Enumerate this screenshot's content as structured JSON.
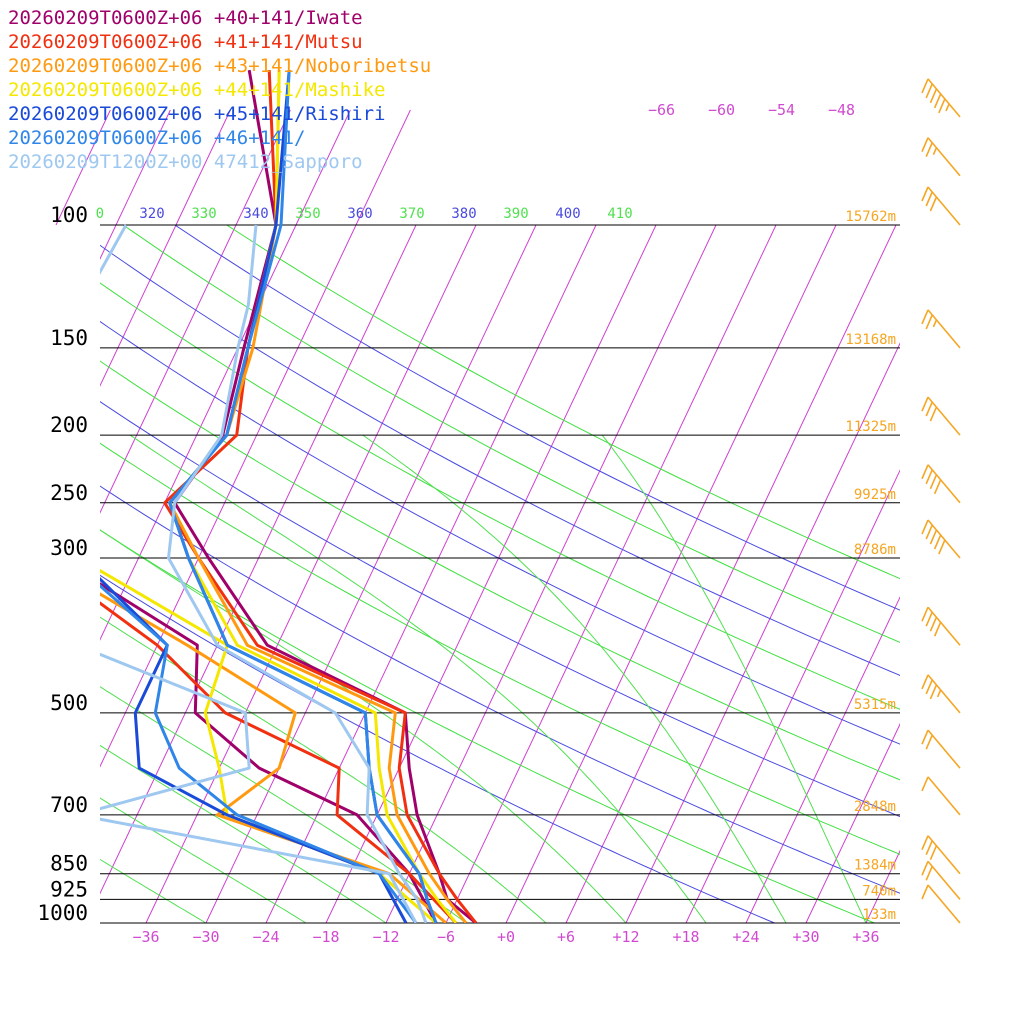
{
  "legend": [
    {
      "label": "20260209T0600Z+06 +40+141/Iwate",
      "color": "#a0006a"
    },
    {
      "label": "20260209T0600Z+06 +41+141/Mutsu",
      "color": "#f03010"
    },
    {
      "label": "20260209T0600Z+06 +43+141/Noboribetsu",
      "color": "#ff9a10"
    },
    {
      "label": "20260209T0600Z+06 +44+141/Mashike",
      "color": "#f4e800"
    },
    {
      "label": "20260209T0600Z+06 +45+141/Rishiri",
      "color": "#1a4ad8"
    },
    {
      "label": "20260209T0600Z+06 +46+141/",
      "color": "#2f86e8"
    },
    {
      "label": "20260209T1200Z+00 47412_Sapporo",
      "color": "#9ec8f0"
    }
  ],
  "chart_data": {
    "type": "line",
    "subtype": "skew-T log-p diagram",
    "pressure_levels": [
      100,
      150,
      200,
      250,
      300,
      500,
      700,
      850,
      925,
      1000
    ],
    "pressure_labels": [
      "100",
      "150",
      "200",
      "250",
      "300",
      "500",
      "700",
      "850",
      "925",
      "1000"
    ],
    "heights": [
      "15762m",
      "13168m",
      "11325m",
      "9925m",
      "8786m",
      "5315m",
      "2848m",
      "1384m",
      "740m",
      "133m"
    ],
    "temperature_ticks": [
      -36,
      -30,
      -24,
      -18,
      -12,
      -6,
      0,
      6,
      12,
      18,
      24,
      30,
      36
    ],
    "temperature_tick_labels": [
      "−36",
      "−30",
      "−24",
      "−18",
      "−12",
      "−6",
      "+0",
      "+6",
      "+12",
      "+18",
      "+24",
      "+30",
      "+36"
    ],
    "upper_temperature_labels": [
      "−66",
      "−60",
      "−54",
      "−48"
    ],
    "theta_labels": [
      "0",
      "320",
      "330",
      "340",
      "350",
      "360",
      "370",
      "380",
      "390",
      "400",
      "410"
    ],
    "xlim": [
      -40,
      40
    ],
    "ylim": [
      1000,
      100
    ],
    "log_pressure": true,
    "grid": true,
    "legend_position": "top-left",
    "series": [
      {
        "name": "20260209T0600Z+06 +40+141/Iwate",
        "color": "#a0006a",
        "temperature": [
          [
            60,
            -66
          ],
          [
            100,
            -56
          ],
          [
            150,
            -53.4
          ],
          [
            200,
            -51.4
          ],
          [
            250,
            -53
          ],
          [
            300,
            -47
          ],
          [
            400,
            -37
          ],
          [
            500,
            -20
          ],
          [
            600,
            -17
          ],
          [
            700,
            -14
          ],
          [
            850,
            -9
          ],
          [
            925,
            -7
          ],
          [
            1000,
            -3
          ]
        ],
        "dewpoint": [
          [
            300,
            -62
          ],
          [
            400,
            -44
          ],
          [
            500,
            -41
          ],
          [
            600,
            -32
          ],
          [
            700,
            -20
          ],
          [
            850,
            -12
          ],
          [
            1000,
            -7
          ]
        ]
      },
      {
        "name": "20260209T0600Z+06 +41+141/Mutsu",
        "color": "#f03010",
        "temperature": [
          [
            60,
            -64
          ],
          [
            100,
            -56
          ],
          [
            150,
            -53
          ],
          [
            200,
            -50
          ],
          [
            250,
            -54
          ],
          [
            300,
            -48
          ],
          [
            400,
            -38
          ],
          [
            500,
            -20
          ],
          [
            600,
            -18
          ],
          [
            700,
            -15
          ],
          [
            850,
            -9
          ],
          [
            925,
            -6
          ],
          [
            1000,
            -3
          ]
        ],
        "dewpoint": [
          [
            300,
            -64
          ],
          [
            400,
            -48
          ],
          [
            500,
            -38
          ],
          [
            600,
            -24
          ],
          [
            700,
            -22
          ],
          [
            850,
            -12
          ],
          [
            1000,
            -5
          ]
        ]
      },
      {
        "name": "20260209T0600Z+06 +43+141/Noboribetsu",
        "color": "#ff9a10",
        "temperature": [
          [
            60,
            -63
          ],
          [
            100,
            -56
          ],
          [
            150,
            -52.5
          ],
          [
            200,
            -51
          ],
          [
            250,
            -53.5
          ],
          [
            300,
            -48
          ],
          [
            400,
            -39
          ],
          [
            500,
            -21
          ],
          [
            600,
            -19
          ],
          [
            700,
            -16
          ],
          [
            850,
            -10
          ],
          [
            925,
            -7
          ],
          [
            1000,
            -4
          ]
        ],
        "dewpoint": [
          [
            300,
            -64
          ],
          [
            400,
            -45
          ],
          [
            500,
            -31
          ],
          [
            600,
            -30
          ],
          [
            700,
            -34
          ],
          [
            850,
            -14
          ],
          [
            1000,
            -6
          ]
        ]
      },
      {
        "name": "20260209T0600Z+06 +44+141/Mashike",
        "color": "#f4e800",
        "temperature": [
          [
            60,
            -63
          ],
          [
            100,
            -56
          ],
          [
            150,
            -53
          ],
          [
            200,
            -51
          ],
          [
            250,
            -53.5
          ],
          [
            300,
            -49
          ],
          [
            400,
            -40
          ],
          [
            500,
            -23
          ],
          [
            600,
            -20
          ],
          [
            700,
            -17
          ],
          [
            850,
            -11
          ],
          [
            925,
            -8
          ],
          [
            1000,
            -5
          ]
        ],
        "dewpoint": [
          [
            300,
            -60
          ],
          [
            400,
            -41
          ],
          [
            500,
            -40
          ],
          [
            600,
            -36
          ],
          [
            700,
            -33
          ],
          [
            850,
            -15
          ],
          [
            1000,
            -7
          ]
        ]
      },
      {
        "name": "20260209T0600Z+06 +45+141/Rishiri",
        "color": "#1a4ad8",
        "temperature": [
          [
            60,
            -62
          ],
          [
            100,
            -56
          ],
          [
            150,
            -53
          ],
          [
            200,
            -51
          ],
          [
            250,
            -53.5
          ],
          [
            300,
            -49
          ],
          [
            400,
            -41
          ],
          [
            500,
            -24
          ],
          [
            600,
            -21
          ],
          [
            700,
            -18
          ],
          [
            850,
            -11
          ],
          [
            925,
            -9
          ],
          [
            1000,
            -7
          ]
        ],
        "dewpoint": [
          [
            300,
            -60
          ],
          [
            400,
            -47
          ],
          [
            500,
            -47
          ],
          [
            600,
            -44
          ],
          [
            700,
            -33
          ],
          [
            850,
            -15
          ],
          [
            1000,
            -10
          ]
        ]
      },
      {
        "name": "20260209T0600Z+06 +46+141/",
        "color": "#2f86e8",
        "temperature": [
          [
            60,
            -62
          ],
          [
            100,
            -55.5
          ],
          [
            150,
            -53
          ],
          [
            200,
            -51
          ],
          [
            250,
            -53.5
          ],
          [
            300,
            -49
          ],
          [
            400,
            -41
          ],
          [
            500,
            -24
          ],
          [
            600,
            -21
          ],
          [
            700,
            -18
          ],
          [
            850,
            -11
          ],
          [
            925,
            -9
          ],
          [
            1000,
            -7
          ]
        ],
        "dewpoint": [
          [
            300,
            -61
          ],
          [
            400,
            -47
          ],
          [
            500,
            -45
          ],
          [
            600,
            -40
          ],
          [
            700,
            -32
          ],
          [
            850,
            -15
          ],
          [
            1000,
            -9
          ]
        ]
      },
      {
        "name": "20260209T1200Z+00 47412_Sapporo",
        "color": "#9ec8f0",
        "temperature": [
          [
            100,
            -58
          ],
          [
            130,
            -55
          ],
          [
            150,
            -54
          ],
          [
            200,
            -51.5
          ],
          [
            250,
            -53
          ],
          [
            300,
            -51
          ],
          [
            400,
            -42
          ],
          [
            500,
            -27
          ],
          [
            600,
            -21
          ],
          [
            700,
            -19
          ],
          [
            850,
            -13
          ],
          [
            925,
            -10
          ],
          [
            1000,
            -8
          ]
        ],
        "dewpoint": [
          [
            100,
            -71
          ],
          [
            150,
            -72
          ],
          [
            200,
            -68
          ],
          [
            250,
            -68
          ],
          [
            300,
            -67
          ],
          [
            400,
            -56
          ],
          [
            500,
            -36
          ],
          [
            600,
            -33
          ],
          [
            700,
            -48
          ],
          [
            850,
            -14
          ],
          [
            1000,
            -9
          ]
        ]
      }
    ],
    "wind_barbs": {
      "color": "#f5a623",
      "entries": [
        {
          "pressure": 70,
          "speed_kt": 55
        },
        {
          "pressure": 85,
          "speed_kt": 25
        },
        {
          "pressure": 100,
          "speed_kt": 30
        },
        {
          "pressure": 150,
          "speed_kt": 25
        },
        {
          "pressure": 200,
          "speed_kt": 30
        },
        {
          "pressure": 250,
          "speed_kt": 40
        },
        {
          "pressure": 300,
          "speed_kt": 50
        },
        {
          "pressure": 400,
          "speed_kt": 40
        },
        {
          "pressure": 500,
          "speed_kt": 35
        },
        {
          "pressure": 600,
          "speed_kt": 20
        },
        {
          "pressure": 700,
          "speed_kt": 10
        },
        {
          "pressure": 850,
          "speed_kt": 30
        },
        {
          "pressure": 925,
          "speed_kt": 20
        },
        {
          "pressure": 1000,
          "speed_kt": 10
        }
      ]
    }
  }
}
